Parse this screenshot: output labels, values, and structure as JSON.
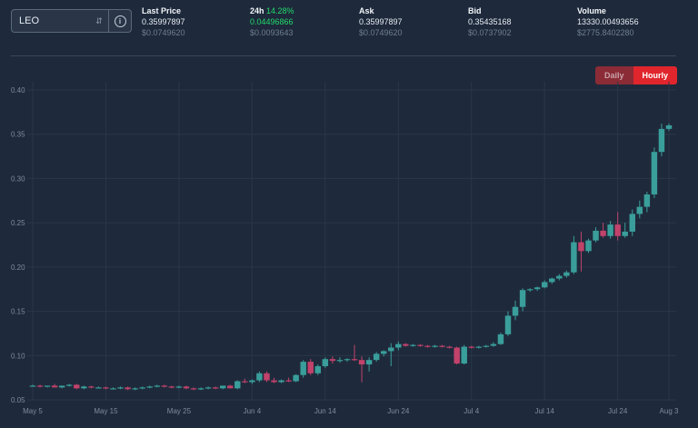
{
  "selector": {
    "value": "LEO"
  },
  "stats": [
    {
      "key": "last",
      "label": "Last Price",
      "change": "",
      "value": "0.35997897",
      "sub": "$0.0749620"
    },
    {
      "key": "24h",
      "label": "24h",
      "change": "14.28%",
      "value": "0.04496866",
      "sub": "$0.0093643"
    },
    {
      "key": "ask",
      "label": "Ask",
      "change": "",
      "value": "0.35997897",
      "sub": "$0.0749620"
    },
    {
      "key": "bid",
      "label": "Bid",
      "change": "",
      "value": "0.35435168",
      "sub": "$0.0737902"
    },
    {
      "key": "volume",
      "label": "Volume",
      "change": "",
      "value": "13330.00493656",
      "sub": "$2775.8402280"
    }
  ],
  "toggle": {
    "daily": "Daily",
    "hourly": "Hourly",
    "active": "hourly"
  },
  "colors": {
    "up": "#3a9e9b",
    "down": "#c1426b",
    "grid": "#2a3749",
    "axis_text": "#7f8b9b",
    "green_text": "#22d96b"
  },
  "chart_data": {
    "type": "candlestick",
    "ylim": [
      0.04,
      0.4
    ],
    "yticks": [
      "0.05",
      "0.10",
      "0.15",
      "0.20",
      "0.25",
      "0.30",
      "0.35",
      "0.40"
    ],
    "xticks": [
      "May 5",
      "May 15",
      "May 25",
      "Jun 4",
      "Jun 14",
      "Jun 24",
      "Jul 4",
      "Jul 14",
      "Jul 24",
      "Aug 3"
    ],
    "x_start": "May 5",
    "x_step_days": 1,
    "candles": [
      [
        0.066,
        0.067,
        0.065,
        0.066
      ],
      [
        0.066,
        0.067,
        0.064,
        0.065
      ],
      [
        0.065,
        0.066,
        0.064,
        0.066
      ],
      [
        0.066,
        0.068,
        0.064,
        0.064
      ],
      [
        0.064,
        0.066,
        0.063,
        0.066
      ],
      [
        0.066,
        0.068,
        0.065,
        0.067
      ],
      [
        0.067,
        0.068,
        0.062,
        0.063
      ],
      [
        0.063,
        0.066,
        0.062,
        0.065
      ],
      [
        0.065,
        0.066,
        0.063,
        0.064
      ],
      [
        0.064,
        0.065,
        0.063,
        0.064
      ],
      [
        0.064,
        0.065,
        0.062,
        0.063
      ],
      [
        0.063,
        0.064,
        0.062,
        0.063
      ],
      [
        0.063,
        0.065,
        0.062,
        0.064
      ],
      [
        0.064,
        0.065,
        0.061,
        0.062
      ],
      [
        0.062,
        0.064,
        0.061,
        0.063
      ],
      [
        0.063,
        0.065,
        0.062,
        0.064
      ],
      [
        0.064,
        0.066,
        0.063,
        0.065
      ],
      [
        0.065,
        0.067,
        0.064,
        0.066
      ],
      [
        0.066,
        0.067,
        0.064,
        0.065
      ],
      [
        0.065,
        0.066,
        0.063,
        0.064
      ],
      [
        0.064,
        0.066,
        0.063,
        0.065
      ],
      [
        0.065,
        0.066,
        0.062,
        0.063
      ],
      [
        0.063,
        0.064,
        0.061,
        0.062
      ],
      [
        0.062,
        0.064,
        0.061,
        0.063
      ],
      [
        0.063,
        0.065,
        0.062,
        0.064
      ],
      [
        0.064,
        0.065,
        0.062,
        0.063
      ],
      [
        0.063,
        0.066,
        0.062,
        0.066
      ],
      [
        0.066,
        0.067,
        0.063,
        0.063
      ],
      [
        0.063,
        0.072,
        0.062,
        0.071
      ],
      [
        0.071,
        0.074,
        0.069,
        0.07
      ],
      [
        0.07,
        0.073,
        0.068,
        0.072
      ],
      [
        0.072,
        0.082,
        0.07,
        0.08
      ],
      [
        0.08,
        0.082,
        0.07,
        0.072
      ],
      [
        0.072,
        0.075,
        0.069,
        0.07
      ],
      [
        0.07,
        0.073,
        0.069,
        0.072
      ],
      [
        0.072,
        0.075,
        0.07,
        0.071
      ],
      [
        0.071,
        0.079,
        0.07,
        0.078
      ],
      [
        0.078,
        0.095,
        0.075,
        0.093
      ],
      [
        0.093,
        0.096,
        0.078,
        0.08
      ],
      [
        0.08,
        0.09,
        0.078,
        0.088
      ],
      [
        0.088,
        0.098,
        0.086,
        0.096
      ],
      [
        0.096,
        0.099,
        0.091,
        0.094
      ],
      [
        0.094,
        0.098,
        0.092,
        0.095
      ],
      [
        0.095,
        0.097,
        0.093,
        0.096
      ],
      [
        0.096,
        0.112,
        0.094,
        0.095
      ],
      [
        0.095,
        0.099,
        0.07,
        0.09
      ],
      [
        0.09,
        0.098,
        0.082,
        0.095
      ],
      [
        0.095,
        0.104,
        0.093,
        0.102
      ],
      [
        0.102,
        0.106,
        0.099,
        0.105
      ],
      [
        0.105,
        0.114,
        0.088,
        0.109
      ],
      [
        0.109,
        0.116,
        0.106,
        0.113
      ],
      [
        0.113,
        0.114,
        0.11,
        0.111
      ],
      [
        0.111,
        0.113,
        0.11,
        0.112
      ],
      [
        0.112,
        0.113,
        0.11,
        0.111
      ],
      [
        0.111,
        0.112,
        0.109,
        0.11
      ],
      [
        0.11,
        0.112,
        0.109,
        0.111
      ],
      [
        0.111,
        0.112,
        0.109,
        0.11
      ],
      [
        0.11,
        0.111,
        0.108,
        0.109
      ],
      [
        0.109,
        0.11,
        0.09,
        0.091
      ],
      [
        0.091,
        0.112,
        0.09,
        0.11
      ],
      [
        0.11,
        0.111,
        0.108,
        0.109
      ],
      [
        0.109,
        0.111,
        0.108,
        0.11
      ],
      [
        0.11,
        0.112,
        0.109,
        0.111
      ],
      [
        0.111,
        0.115,
        0.11,
        0.113
      ],
      [
        0.113,
        0.126,
        0.112,
        0.124
      ],
      [
        0.124,
        0.15,
        0.122,
        0.145
      ],
      [
        0.145,
        0.162,
        0.14,
        0.155
      ],
      [
        0.155,
        0.176,
        0.15,
        0.174
      ],
      [
        0.174,
        0.176,
        0.172,
        0.175
      ],
      [
        0.175,
        0.178,
        0.173,
        0.177
      ],
      [
        0.177,
        0.185,
        0.176,
        0.183
      ],
      [
        0.183,
        0.188,
        0.181,
        0.187
      ],
      [
        0.187,
        0.192,
        0.185,
        0.19
      ],
      [
        0.19,
        0.196,
        0.188,
        0.194
      ],
      [
        0.194,
        0.235,
        0.192,
        0.228
      ],
      [
        0.228,
        0.24,
        0.195,
        0.218
      ],
      [
        0.218,
        0.232,
        0.216,
        0.23
      ],
      [
        0.23,
        0.245,
        0.228,
        0.241
      ],
      [
        0.241,
        0.25,
        0.233,
        0.235
      ],
      [
        0.235,
        0.252,
        0.232,
        0.248
      ],
      [
        0.248,
        0.262,
        0.23,
        0.235
      ],
      [
        0.235,
        0.25,
        0.233,
        0.24
      ],
      [
        0.24,
        0.265,
        0.235,
        0.26
      ],
      [
        0.26,
        0.275,
        0.255,
        0.268
      ],
      [
        0.268,
        0.285,
        0.262,
        0.282
      ],
      [
        0.282,
        0.335,
        0.278,
        0.33
      ],
      [
        0.33,
        0.362,
        0.325,
        0.356
      ],
      [
        0.356,
        0.362,
        0.354,
        0.36
      ]
    ]
  }
}
